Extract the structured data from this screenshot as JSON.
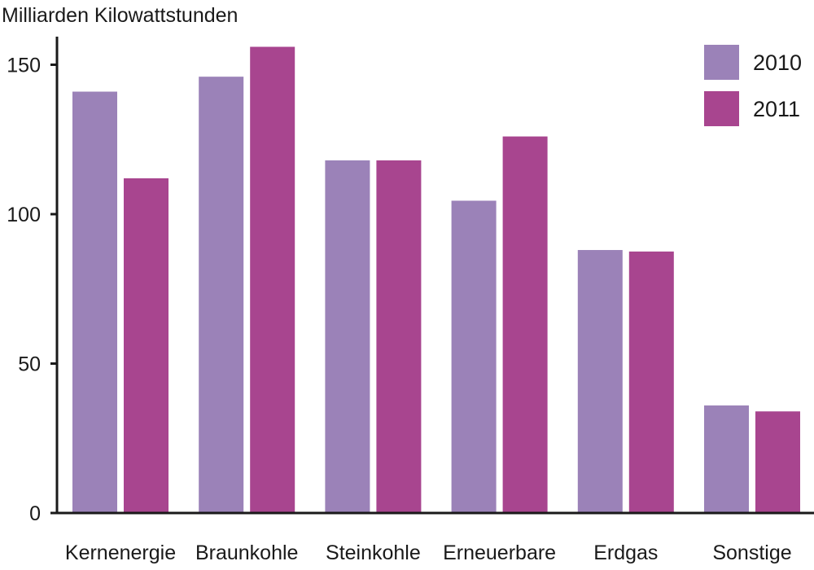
{
  "chart_data": {
    "type": "bar",
    "title": "",
    "xlabel": "",
    "ylabel": "Milliarden Kilowattstunden",
    "ylim": [
      0,
      155
    ],
    "yticks": [
      "0",
      "50",
      "100",
      "150"
    ],
    "categories": [
      "Kernenergie",
      "Braunkohle",
      "Steinkohle",
      "Erneuerbare",
      "Erdgas",
      "Sonstige"
    ],
    "series": [
      {
        "name": "2010",
        "color": "#9b82b8",
        "values": [
          141,
          146,
          118,
          104.5,
          88,
          36
        ]
      },
      {
        "name": "2011",
        "color": "#a8458f",
        "values": [
          112,
          156,
          118,
          126,
          87.5,
          34
        ]
      }
    ],
    "grid": false,
    "legend": "top-right"
  }
}
